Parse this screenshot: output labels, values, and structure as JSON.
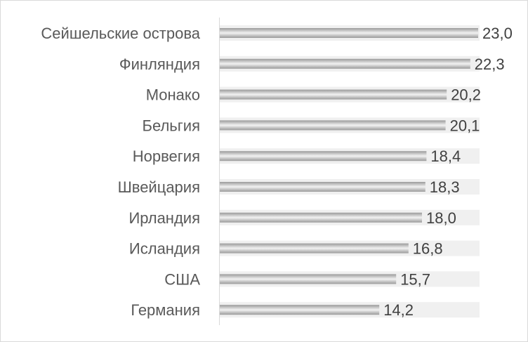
{
  "chart_data": {
    "type": "bar",
    "orientation": "horizontal",
    "categories": [
      "Сейшельские острова",
      "Финляндия",
      "Монако",
      "Бельгия",
      "Норвегия",
      "Швейцария",
      "Ирландия",
      "Исландия",
      "США",
      "Германия"
    ],
    "values": [
      23.0,
      22.3,
      20.2,
      20.1,
      18.4,
      18.3,
      18.0,
      16.8,
      15.7,
      14.2
    ],
    "value_labels": [
      "23,0",
      "22,3",
      "20,2",
      "20,1",
      "18,4",
      "18,3",
      "18,0",
      "16,8",
      "15,7",
      "14,2"
    ],
    "xlim": [
      0,
      23.0
    ],
    "grid": false,
    "legend": "none",
    "colors": {
      "bar_edge": "#9a9a9a",
      "bar_center": "#f2f2f2",
      "track": "#f0f0f0",
      "axis": "#d9d9d9"
    }
  }
}
